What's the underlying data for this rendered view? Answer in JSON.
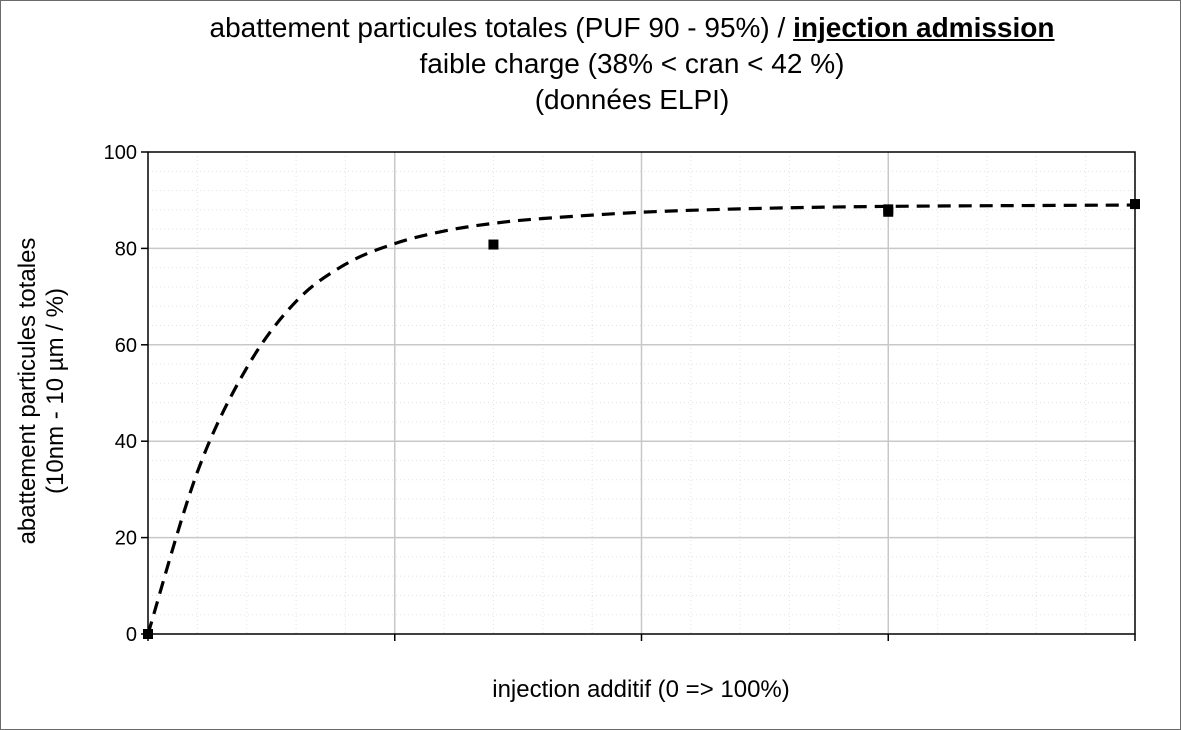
{
  "chart": {
    "title": {
      "line1_prefix": "abattement particules totales (PUF 90 - 95%) / ",
      "line1_emphasis": "injection admission",
      "line2": "faible charge (38% < cran < 42 %)",
      "line3": "(données ELPI)"
    },
    "ylabel_line1": "abattement particules totales",
    "ylabel_line2": "(10nm - 10 µm  / %)",
    "xlabel": "injection additif (0 => 100%)"
  },
  "chart_data": {
    "type": "scatter",
    "title": "abattement particules totales (PUF 90 - 95%) / injection admission faible charge (38% < cran < 42 %) (données ELPI)",
    "xlabel": "injection additif (0 => 100%)",
    "ylabel": "abattement particules totales (10nm - 10 µm  / %)",
    "xlim": [
      0,
      100
    ],
    "ylim": [
      0,
      100
    ],
    "y_ticks": [
      0,
      20,
      40,
      60,
      80,
      100
    ],
    "x_ticks": [
      0,
      25,
      50,
      75,
      100
    ],
    "x_tick_labels_shown": false,
    "grid": true,
    "legend": "none",
    "series": [
      {
        "marker": "square",
        "color": "#000000",
        "points": [
          {
            "x": 0,
            "y": 0
          },
          {
            "x": 35,
            "y": 80.8
          },
          {
            "x": 75,
            "y": 88.1
          },
          {
            "x": 75,
            "y": 87.6
          },
          {
            "x": 100,
            "y": 89.2
          }
        ]
      }
    ],
    "trendline": {
      "style": "dashed",
      "color": "#000000",
      "form": "exponential-saturation",
      "samples": [
        {
          "x": 0,
          "y": 0
        },
        {
          "x": 5,
          "y": 33.6
        },
        {
          "x": 10,
          "y": 55.2
        },
        {
          "x": 15,
          "y": 69.0
        },
        {
          "x": 20,
          "y": 76.7
        },
        {
          "x": 25,
          "y": 81.0
        },
        {
          "x": 30,
          "y": 83.6
        },
        {
          "x": 35,
          "y": 85.2
        },
        {
          "x": 40,
          "y": 86.2
        },
        {
          "x": 50,
          "y": 87.5
        },
        {
          "x": 60,
          "y": 88.2
        },
        {
          "x": 70,
          "y": 88.6
        },
        {
          "x": 80,
          "y": 88.8
        },
        {
          "x": 90,
          "y": 88.9
        },
        {
          "x": 100,
          "y": 89.0
        }
      ]
    },
    "colors": {
      "plot_border": "#000000",
      "major_grid": "#c8c8c8",
      "minor_grid": "#e2e2e2",
      "marker": "#000000",
      "trendline": "#000000"
    }
  }
}
